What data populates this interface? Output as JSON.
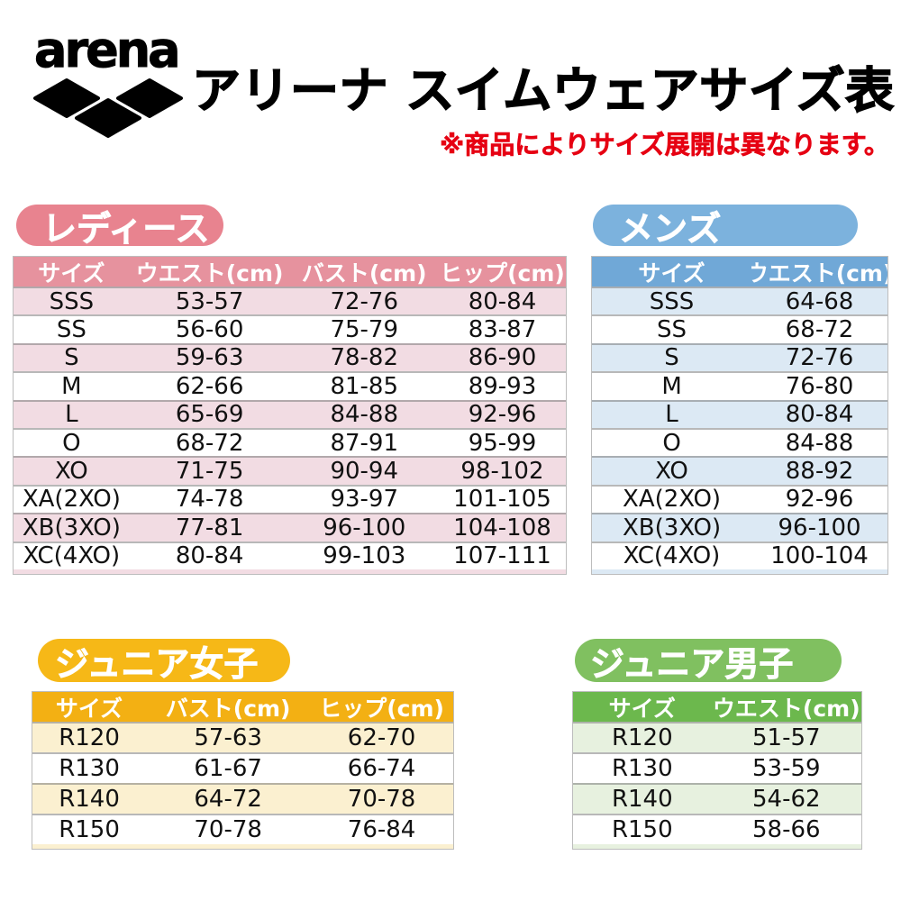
{
  "header": {
    "logo_wordmark": "arena",
    "title": "アリーナ スイムウェアサイズ表",
    "note": "※商品によりサイズ展開は異なります。",
    "note_color": "#e60012"
  },
  "tables": [
    {
      "id": "ladies",
      "badge": "レディース",
      "colors": {
        "badge": "#e8838f",
        "header": "#e6929e",
        "row_alt": "#f2dce3"
      },
      "columns": [
        "サイズ",
        "ウエスト(cm)",
        "バスト(cm)",
        "ヒップ(cm)"
      ],
      "rows": [
        [
          "SSS",
          "53-57",
          "72-76",
          "80-84"
        ],
        [
          "SS",
          "56-60",
          "75-79",
          "83-87"
        ],
        [
          "S",
          "59-63",
          "78-82",
          "86-90"
        ],
        [
          "M",
          "62-66",
          "81-85",
          "89-93"
        ],
        [
          "L",
          "65-69",
          "84-88",
          "92-96"
        ],
        [
          "O",
          "68-72",
          "87-91",
          "95-99"
        ],
        [
          "XO",
          "71-75",
          "90-94",
          "98-102"
        ],
        [
          "XA(2XO)",
          "74-78",
          "93-97",
          "101-105"
        ],
        [
          "XB(3XO)",
          "77-81",
          "96-100",
          "104-108"
        ],
        [
          "XC(4XO)",
          "80-84",
          "99-103",
          "107-111"
        ]
      ]
    },
    {
      "id": "mens",
      "badge": "メンズ",
      "colors": {
        "badge": "#7cb2dd",
        "header": "#70a8d7",
        "row_alt": "#dce9f4"
      },
      "columns": [
        "サイズ",
        "ウエスト(cm)"
      ],
      "rows": [
        [
          "SSS",
          "64-68"
        ],
        [
          "SS",
          "68-72"
        ],
        [
          "S",
          "72-76"
        ],
        [
          "M",
          "76-80"
        ],
        [
          "L",
          "80-84"
        ],
        [
          "O",
          "84-88"
        ],
        [
          "XO",
          "88-92"
        ],
        [
          "XA(2XO)",
          "92-96"
        ],
        [
          "XB(3XO)",
          "96-100"
        ],
        [
          "XC(4XO)",
          "100-104"
        ]
      ]
    },
    {
      "id": "girls",
      "badge": "ジュニア女子",
      "colors": {
        "badge": "#f6b817",
        "header": "#f3b013",
        "row_alt": "#fbf0d0"
      },
      "columns": [
        "サイズ",
        "バスト(cm)",
        "ヒップ(cm)"
      ],
      "rows": [
        [
          "R120",
          "57-63",
          "62-70"
        ],
        [
          "R130",
          "61-67",
          "66-74"
        ],
        [
          "R140",
          "64-72",
          "70-78"
        ],
        [
          "R150",
          "70-78",
          "76-84"
        ]
      ]
    },
    {
      "id": "boys",
      "badge": "ジュニア男子",
      "colors": {
        "badge": "#80c060",
        "header": "#6cb84d",
        "row_alt": "#e7f1df"
      },
      "columns": [
        "サイズ",
        "ウエスト(cm)"
      ],
      "rows": [
        [
          "R120",
          "51-57"
        ],
        [
          "R130",
          "53-59"
        ],
        [
          "R140",
          "54-62"
        ],
        [
          "R150",
          "58-66"
        ]
      ]
    }
  ]
}
